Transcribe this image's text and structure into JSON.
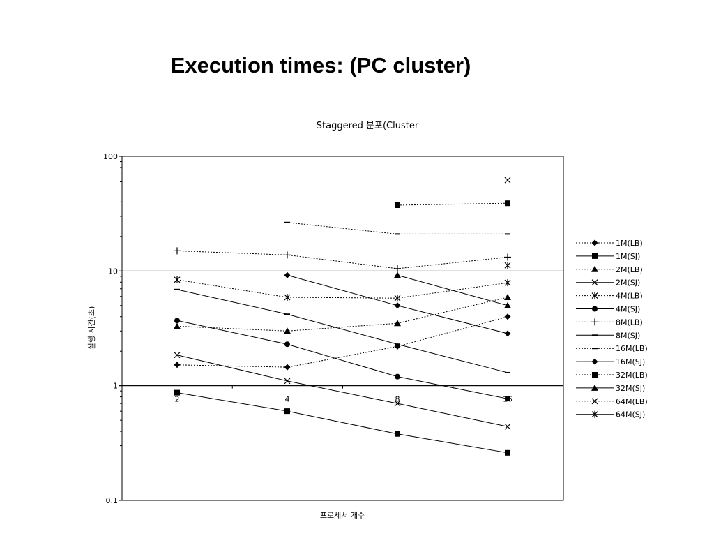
{
  "slide": {
    "title": "Execution times: (PC cluster)"
  },
  "chart_data": {
    "type": "line",
    "title": "Staggered 분포(Cluster",
    "xlabel": "프로세서 개수",
    "ylabel": "실행 시간(초)",
    "x": [
      2,
      4,
      8,
      16
    ],
    "x_tick_labels": [
      "2",
      "4",
      "8",
      "16"
    ],
    "y_scale": "log",
    "ylim": [
      0.1,
      100
    ],
    "y_tick_labels": [
      "100",
      "10",
      "1",
      "0.1"
    ],
    "y_tick_values": [
      100,
      10,
      1,
      0.1
    ],
    "major_gridlines_y": [
      10,
      1
    ],
    "legend_position": "right",
    "series": [
      {
        "name": "1M(LB)",
        "line": "dotted",
        "marker": "diamond",
        "values": [
          1.52,
          1.45,
          2.2,
          4.0
        ]
      },
      {
        "name": "1M(SJ)",
        "line": "solid",
        "marker": "square",
        "values": [
          0.87,
          0.6,
          0.38,
          0.26
        ]
      },
      {
        "name": "2M(LB)",
        "line": "dotted",
        "marker": "triangle",
        "values": [
          3.3,
          3.0,
          3.5,
          5.9
        ]
      },
      {
        "name": "2M(SJ)",
        "line": "solid",
        "marker": "x",
        "values": [
          1.85,
          1.1,
          0.7,
          0.44
        ]
      },
      {
        "name": "4M(LB)",
        "line": "dotted",
        "marker": "star",
        "values": [
          8.4,
          5.9,
          5.8,
          7.9
        ]
      },
      {
        "name": "4M(SJ)",
        "line": "solid",
        "marker": "circle",
        "values": [
          3.7,
          2.3,
          1.2,
          0.77
        ]
      },
      {
        "name": "8M(LB)",
        "line": "dotted",
        "marker": "plus",
        "values": [
          15.0,
          13.8,
          10.5,
          13.2
        ]
      },
      {
        "name": "8M(SJ)",
        "line": "solid",
        "marker": "dash",
        "values": [
          6.9,
          4.2,
          2.3,
          1.3
        ]
      },
      {
        "name": "16M(LB)",
        "line": "dotted",
        "marker": "dash",
        "values": [
          null,
          26.5,
          21.0,
          21.0
        ]
      },
      {
        "name": "16M(SJ)",
        "line": "solid",
        "marker": "diamond",
        "values": [
          null,
          9.2,
          5.0,
          2.85
        ]
      },
      {
        "name": "32M(LB)",
        "line": "dotted",
        "marker": "square",
        "values": [
          null,
          null,
          37.5,
          39.0
        ]
      },
      {
        "name": "32M(SJ)",
        "line": "solid",
        "marker": "triangle",
        "values": [
          null,
          null,
          9.2,
          5.0
        ]
      },
      {
        "name": "64M(LB)",
        "line": "dotted",
        "marker": "x",
        "values": [
          null,
          null,
          null,
          62.0
        ]
      },
      {
        "name": "64M(SJ)",
        "line": "solid",
        "marker": "star",
        "values": [
          null,
          null,
          null,
          11.2
        ]
      }
    ]
  }
}
